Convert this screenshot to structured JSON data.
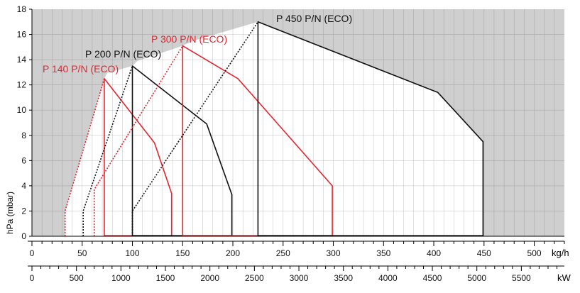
{
  "chart_data": {
    "type": "line",
    "title": "",
    "ylabel": "hPa (mbar)",
    "xlabel_primary": "kg/h",
    "xlabel_secondary": "kW",
    "ylim": [
      0,
      18
    ],
    "xlim": [
      0,
      530
    ],
    "grid": true,
    "y_ticks": [
      0,
      2,
      4,
      6,
      8,
      10,
      12,
      14,
      16,
      18
    ],
    "x_ticks": [
      0,
      50,
      100,
      150,
      200,
      250,
      300,
      350,
      400,
      450,
      500
    ],
    "x_tick_labels": [
      "0",
      "50",
      "100",
      "150",
      "200",
      "250",
      "300",
      "350",
      "400",
      "450",
      "500"
    ],
    "secondary_ticks": [
      0,
      500,
      1000,
      1500,
      2000,
      2500,
      3000,
      3500,
      4000,
      4500,
      5000,
      5500
    ],
    "secondary_tick_labels": [
      "0",
      "500",
      "1000",
      "1500",
      "2000",
      "2500",
      "3000",
      "3500",
      "4000",
      "4500",
      "5000",
      "5500"
    ],
    "kw_per_kgh": 11.29,
    "colors": {
      "plot_background": "#cfcfd0",
      "grid": "#a8a8a8",
      "axis": "#000000",
      "black_series": "#111111",
      "red_series": "#e3262f"
    },
    "series": [
      {
        "name": "P 140 P/N (ECO)",
        "color": "#e3262f",
        "boundary": [
          [
            72,
            0
          ],
          [
            72,
            12.5
          ],
          [
            122,
            7.4
          ],
          [
            139,
            3.4
          ],
          [
            139,
            0
          ]
        ],
        "dotted": [
          [
            33,
            0
          ],
          [
            33,
            2
          ],
          [
            72,
            12.5
          ]
        ]
      },
      {
        "name": "P 200 P/N (ECO)",
        "color": "#111111",
        "boundary": [
          [
            100,
            0
          ],
          [
            100,
            13.5
          ],
          [
            174,
            8.9
          ],
          [
            199,
            3.3
          ],
          [
            199,
            0
          ]
        ],
        "dotted": [
          [
            51,
            0
          ],
          [
            51,
            2
          ],
          [
            100,
            13.5
          ]
        ]
      },
      {
        "name": "P 300 P/N (ECO)",
        "color": "#e3262f",
        "boundary": [
          [
            150,
            0
          ],
          [
            150,
            15.1
          ],
          [
            205,
            12.5
          ],
          [
            299,
            4
          ],
          [
            299,
            0
          ]
        ],
        "dotted": [
          [
            62,
            0
          ],
          [
            62,
            3.7
          ],
          [
            150,
            15.1
          ]
        ]
      },
      {
        "name": "P 450 P/N (ECO)",
        "color": "#111111",
        "boundary": [
          [
            225,
            0
          ],
          [
            225,
            17
          ],
          [
            404,
            11.4
          ],
          [
            449,
            7.5
          ],
          [
            449,
            0
          ]
        ],
        "dotted": [
          [
            100,
            0
          ],
          [
            100,
            2
          ],
          [
            225,
            17
          ]
        ]
      }
    ]
  }
}
